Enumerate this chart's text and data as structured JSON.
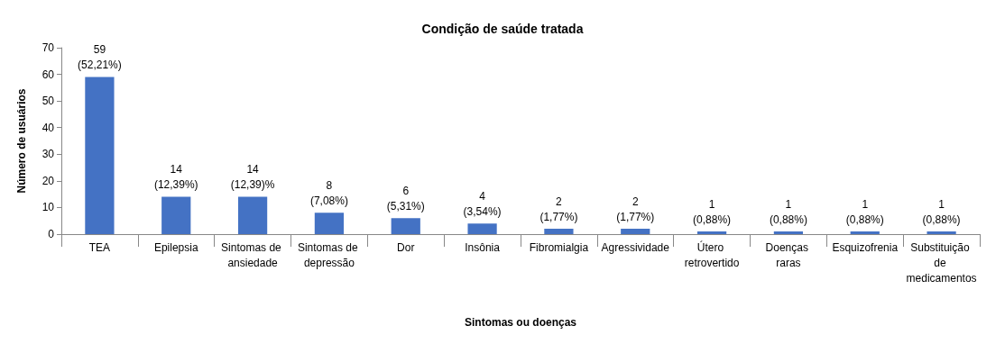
{
  "chart_data": {
    "type": "bar",
    "title": "Condição de saúde tratada",
    "xlabel": "Sintomas ou doenças",
    "ylabel": "Número de usuários",
    "categories": [
      "TEA",
      "Epilepsia",
      "Sintomas de ansiedade",
      "Sintomas de depressão",
      "Dor",
      "Insônia",
      "Fibromialgia",
      "Agressividade",
      "Útero retrovertido",
      "Doenças raras",
      "Esquizofrenia",
      "Substituição de medicamentos"
    ],
    "values": [
      59,
      14,
      14,
      8,
      6,
      4,
      2,
      2,
      1,
      1,
      1,
      1
    ],
    "value_labels": [
      "59\n(52,21%)",
      "14\n(12,39%)",
      "14\n(12,39)%",
      "8\n(7,08%)",
      "6\n(5,31%)",
      "4\n(3,54%)",
      "2\n(1,77%)",
      "2\n(1,77%)",
      "1\n(0,88%)",
      "1\n(0,88%)",
      "1\n(0,88%)",
      "1\n(0,88%)"
    ],
    "color": "#4472c4",
    "ylim": [
      0,
      70
    ],
    "yticks": [
      0,
      10,
      20,
      30,
      40,
      50,
      60,
      70
    ],
    "grid": false
  }
}
